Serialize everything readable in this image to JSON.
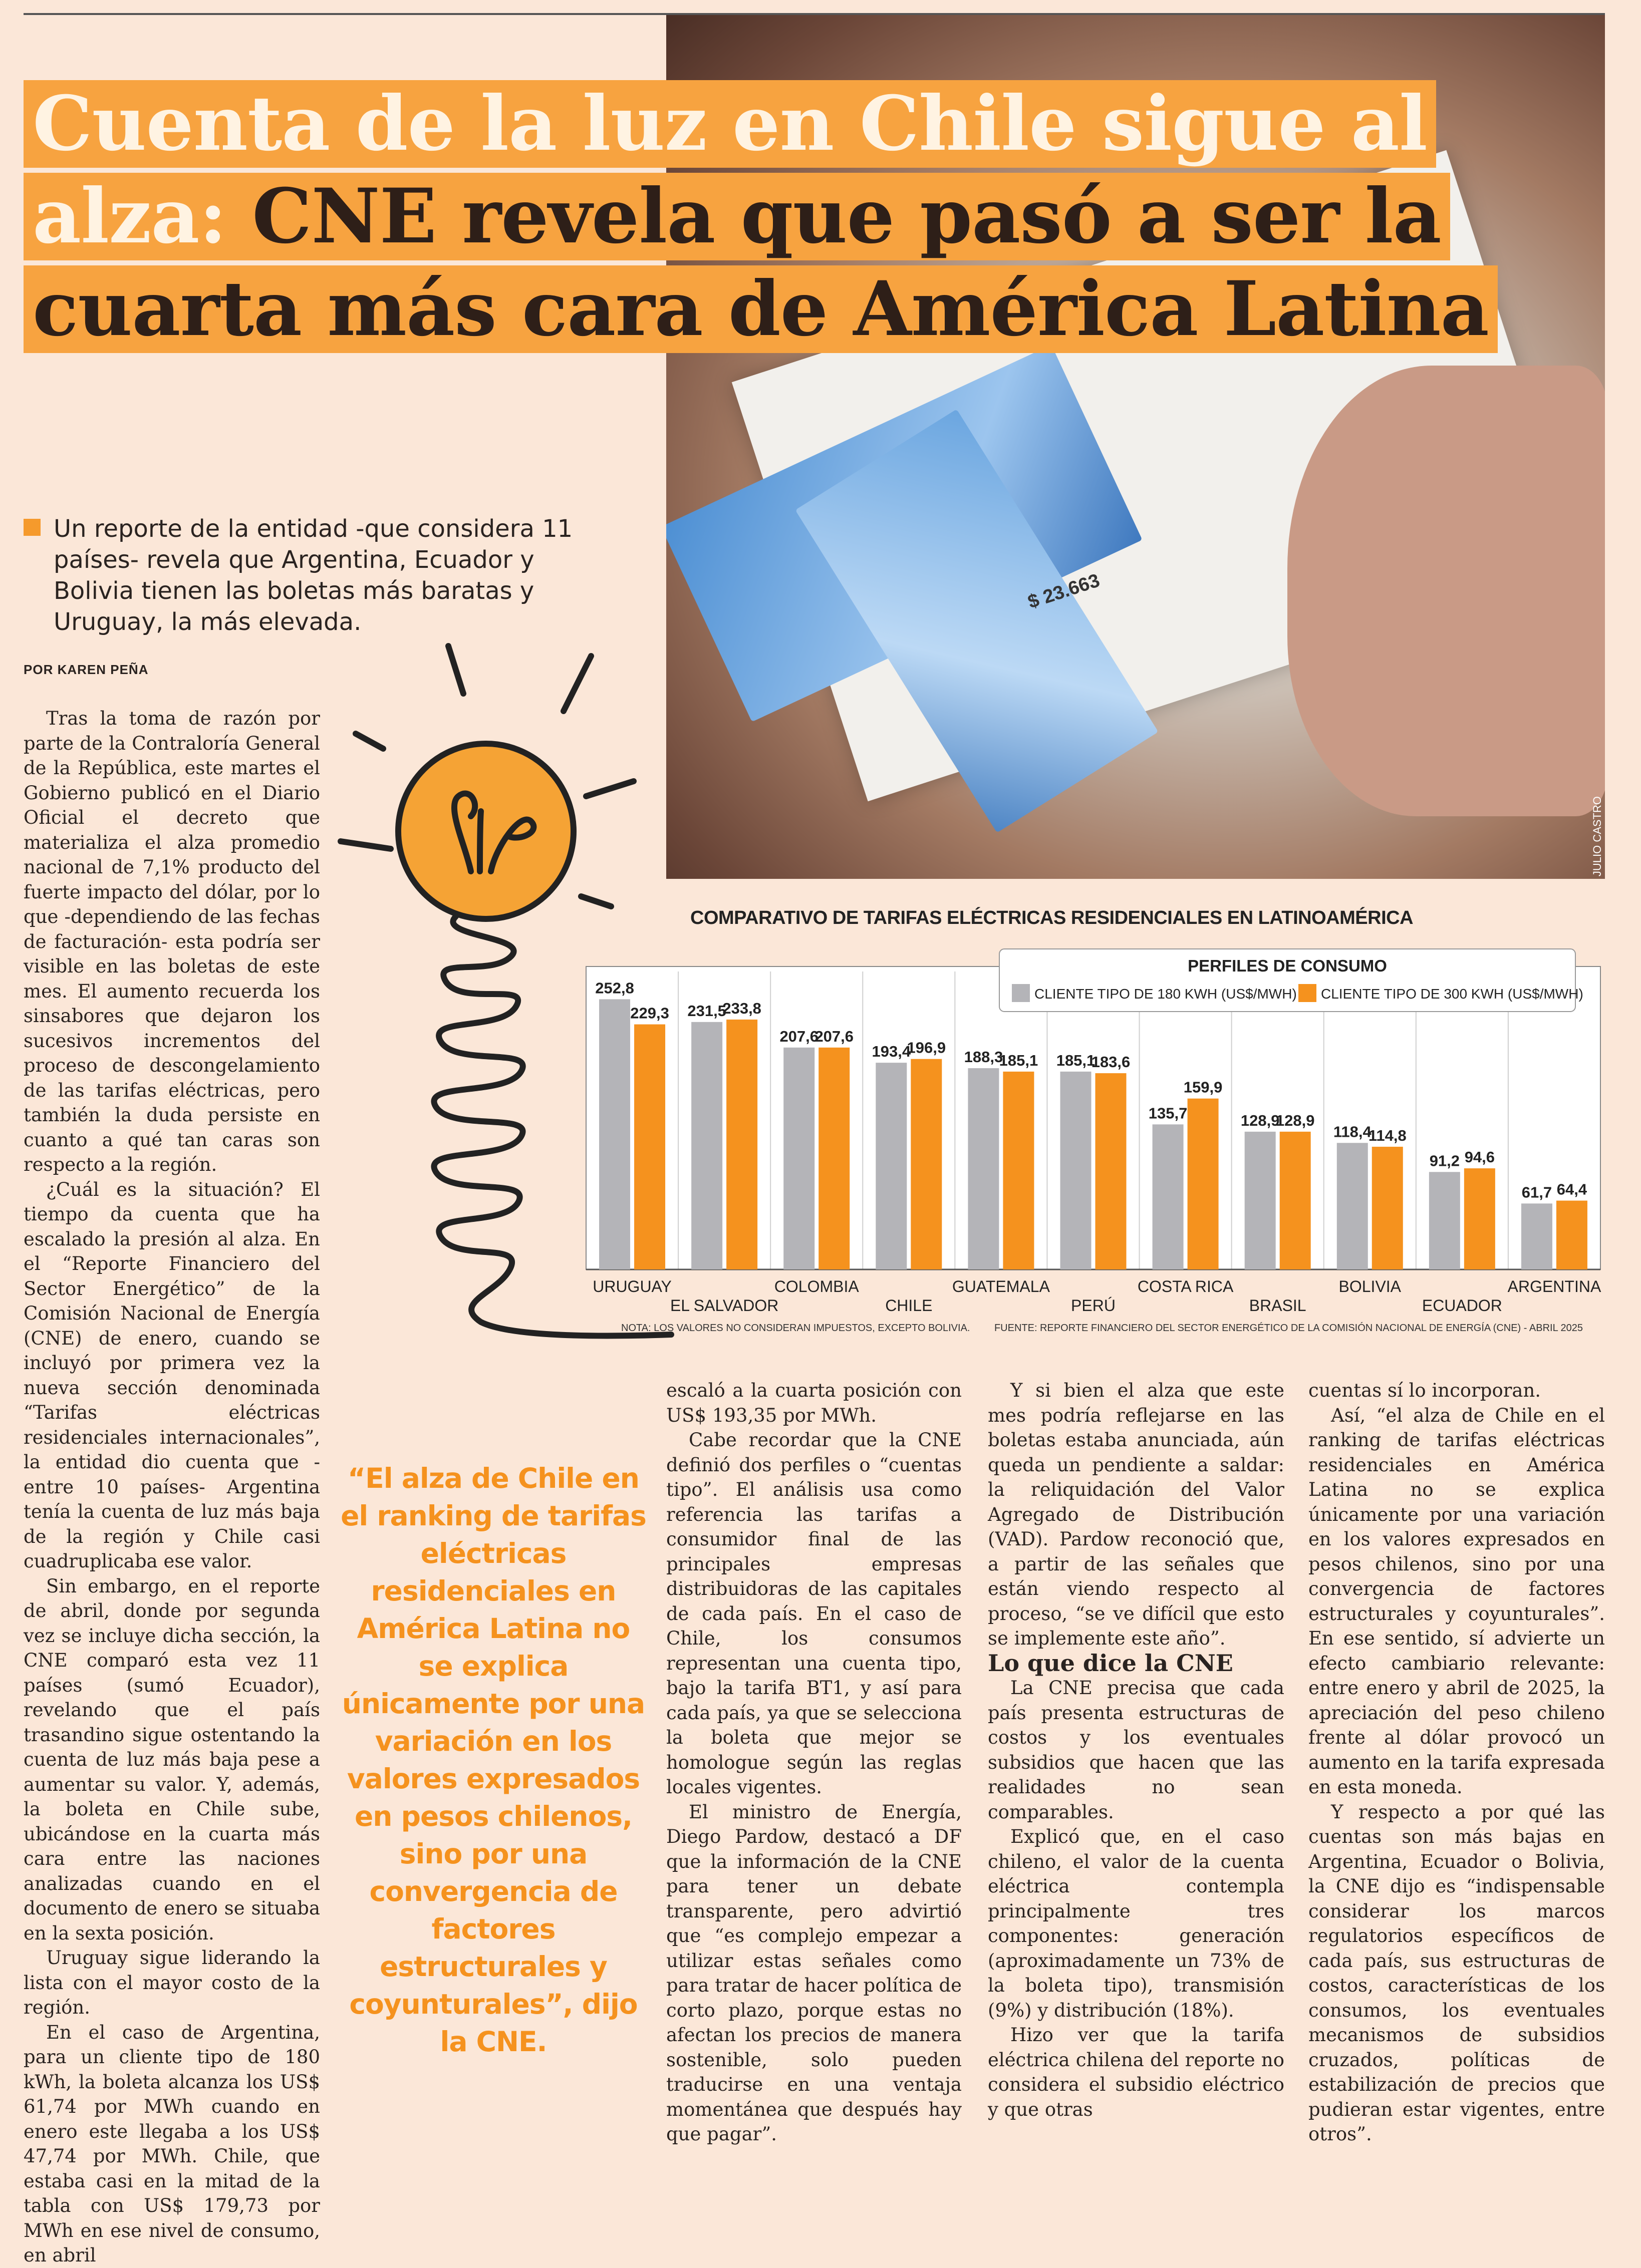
{
  "headline": {
    "line1": "Cuenta de la luz en Chile sigue al",
    "line2_light": "alza:",
    "line2_dark": "CNE revela que pasó a ser la",
    "line3": "cuarta más cara de América Latina"
  },
  "lead": "Un reporte de la entidad -que considera 11 países- revela que Argentina, Ecuador y Bolivia tienen las boletas más baratas y Uruguay, la más elevada.",
  "byline": "POR KAREN PEÑA",
  "photo": {
    "credit": "JULIO CASTRO",
    "amount": "$ 23.663"
  },
  "body": {
    "col1": [
      "Tras la toma de razón por parte de la Contraloría General de la República, este martes el Gobierno publicó en el Diario Oficial el decreto que materializa el alza promedio nacional de 7,1% producto del fuerte impacto del dólar, por lo que -dependiendo de las fechas de facturación- esta podría ser visible en las boletas de este mes. El aumento recuerda los sinsabores que dejaron los sucesivos incrementos del proceso de descongelamiento de las tarifas eléctricas, pero también la duda persiste en cuanto a qué tan caras son respecto a la región.",
      "¿Cuál es la situación? El tiempo da cuenta que ha escalado la presión al alza. En el “Reporte Financiero del Sector Energético” de la Comisión Nacional de Energía (CNE) de enero, cuando se incluyó por primera vez la nueva sección denominada “Tarifas eléctricas residenciales internacionales”, la entidad dio cuenta que -entre 10 países- Argentina tenía la cuenta de luz más baja de la región y Chile casi cuadruplicaba ese valor.",
      "Sin embargo, en el reporte de abril, donde por segunda vez se incluye dicha sección, la CNE comparó esta vez 11 países (sumó Ecuador), revelando que el país trasandino sigue ostentando la cuenta de luz más baja pese a aumentar su valor. Y, además, la boleta en Chile sube, ubicándose en la cuarta más cara entre las naciones analizadas cuando en el documento de enero se situaba en la sexta posición.",
      "Uruguay sigue liderando la lista con el mayor costo de la región.",
      "En el caso de Argentina, para un cliente tipo de 180 kWh, la boleta alcanza los US$ 61,74 por MWh cuando en enero este llegaba a los US$ 47,74 por MWh. Chile, que estaba casi en la mitad de la tabla con US$ 179,73 por MWh en ese nivel de consumo, en abril"
    ],
    "col2": [
      "escaló a la cuarta posición con US$ 193,35 por MWh.",
      "Cabe recordar que la CNE definió dos perfiles o “cuentas tipo”. El análisis usa como referencia las tarifas a consumidor final de las principales empresas distribuidoras de las capitales de cada país. En el caso de Chile, los consumos representan una cuenta tipo, bajo la tarifa BT1, y así para cada país, ya que se selecciona la boleta que mejor se homologue según las reglas locales vigentes.",
      "El ministro de Energía, Diego Pardow, destacó a DF que la información de la CNE para tener un debate transparente, pero advirtió que “es complejo empezar a utilizar estas señales como para tratar de hacer política de corto plazo, porque estas no afectan los precios de manera sostenible, solo pueden traducirse en una ventaja momentánea que después hay que pagar”."
    ],
    "col3": [
      "Y si bien el alza que este mes podría reflejarse en las boletas estaba anunciada, aún queda un pendiente a saldar: la reliquidación del Valor Agregado de Distribución (VAD). Pardow reconoció que, a partir de las señales que están viendo respecto al proceso, “se ve difícil que esto se implemente este año”."
    ],
    "col3_subhead": "Lo que dice la CNE",
    "col3b": [
      "La CNE precisa que cada país presenta estructuras de costos y los eventuales subsidios que hacen que las realidades no sean comparables.",
      "Explicó que, en el caso chileno, el valor de la cuenta eléctrica contempla principalmente tres componentes: generación (aproximadamente un 73% de la boleta tipo), transmisión (9%) y distribución (18%).",
      "Hizo ver que la tarifa eléctrica chilena del reporte no considera el subsidio eléctrico y que otras"
    ],
    "col4": [
      "cuentas sí lo incorporan.",
      "Así, “el alza de Chile en el ranking de tarifas eléctricas residenciales en América Latina no se explica únicamente por una variación en los valores expresados en pesos chilenos, sino por una convergencia de factores estructurales y coyunturales”. En ese sentido, sí advierte un efecto cambiario relevante: entre enero y abril de 2025, la apreciación del peso chileno frente al dólar provocó un aumento en la tarifa expresada en esta moneda.",
      "Y respecto a por qué las cuentas son más bajas en Argentina, Ecuador o Bolivia, la CNE dijo es “indispensable considerar los marcos regulatorios específicos de cada país, sus estructuras de costos, características de los consumos, los eventuales mecanismos de subsidios cruzados, políticas de estabilización de precios que pudieran estar vigentes, entre otros”."
    ]
  },
  "quote": "“El alza de Chile en el ranking de tarifas eléctricas residenciales en América Latina no se explica únicamente por una variación en los valores expresados en pesos chilenos, sino por una convergencia de factores estructurales y coyunturales”, dijo la CNE.",
  "colors": {
    "accent": "#f7a340",
    "gray_bar": "#b4b4b8",
    "orange_bar": "#f5921e",
    "background": "#fbe7d8"
  },
  "chart_data": {
    "type": "bar",
    "title": "COMPARATIVO DE TARIFAS ELÉCTRICAS RESIDENCIALES EN LATINOAMÉRICA",
    "legend_title": "PERFILES DE CONSUMO",
    "legend_placement": "top-right",
    "categories": [
      "URUGUAY",
      "EL SALVADOR",
      "COLOMBIA",
      "CHILE",
      "GUATEMALA",
      "PERÚ",
      "COSTA RICA",
      "BRASIL",
      "BOLIVIA",
      "ECUADOR",
      "ARGENTINA"
    ],
    "series": [
      {
        "name": "CLIENTE TIPO DE 180 KWH (US$/MWH)",
        "color": "#b4b4b8",
        "values": [
          252.8,
          231.5,
          207.6,
          193.4,
          188.3,
          185.1,
          135.7,
          128.9,
          118.4,
          91.2,
          61.7
        ]
      },
      {
        "name": "CLIENTE TIPO DE 300 KWH (US$/MWH)",
        "color": "#f5921e",
        "values": [
          229.3,
          233.8,
          207.6,
          196.9,
          185.1,
          183.6,
          159.9,
          128.9,
          114.8,
          94.6,
          64.4
        ]
      }
    ],
    "value_labels": {
      "s0": [
        "252,8",
        "231,5",
        "207,6",
        "193,4",
        "188,3",
        "185,1",
        "135,7",
        "128,9",
        "118,4",
        "91,2",
        "61,7"
      ],
      "s1": [
        "229,3",
        "233,8",
        "207,6",
        "196,9",
        "185,1",
        "183,6",
        "159,9",
        "128,9",
        "114,8",
        "94,6",
        "64,4"
      ]
    },
    "ylim": [
      0,
      260
    ],
    "note": "NOTA: LOS VALORES NO CONSIDERAN IMPUESTOS, EXCEPTO BOLIVIA.",
    "source": "FUENTE: REPORTE FINANCIERO DEL SECTOR ENERGÉTICO DE LA COMISIÓN NACIONAL DE ENERGÍA (CNE) - ABRIL 2025"
  }
}
